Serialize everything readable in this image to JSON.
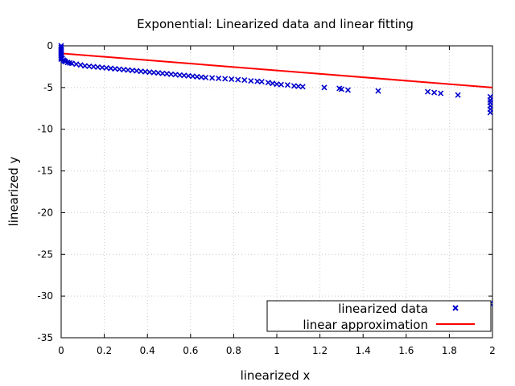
{
  "chart_data": {
    "type": "scatter",
    "title": "Exponential: Linearized data and linear fitting",
    "xlabel": "linearized x",
    "ylabel": "linearized y",
    "xlim": [
      0,
      2
    ],
    "ylim": [
      -35,
      0
    ],
    "xticks": [
      "0",
      "0.2",
      "0.4",
      "0.6",
      "0.8",
      "1",
      "1.2",
      "1.4",
      "1.6",
      "1.8",
      "2"
    ],
    "yticks": [
      "0",
      "-5",
      "-10",
      "-15",
      "-20",
      "-25",
      "-30",
      "-35"
    ],
    "grid": true,
    "legend_position": "bottom-right",
    "series": [
      {
        "name": "linearized data",
        "kind": "points",
        "marker": "x",
        "color": "#0000cc",
        "points": [
          [
            0,
            0
          ],
          [
            0,
            -0.2
          ],
          [
            0,
            -0.4
          ],
          [
            0,
            -0.6
          ],
          [
            0,
            -0.8
          ],
          [
            0,
            -1.0
          ],
          [
            0,
            -1.2
          ],
          [
            0,
            -1.4
          ],
          [
            0,
            -1.6
          ],
          [
            0.005,
            -1.5
          ],
          [
            0.01,
            -1.7
          ],
          [
            0.015,
            -1.8
          ],
          [
            0.02,
            -1.9
          ],
          [
            0.03,
            -2.0
          ],
          [
            0.04,
            -2.05
          ],
          [
            0.05,
            -2.1
          ],
          [
            0.07,
            -2.2
          ],
          [
            0.09,
            -2.3
          ],
          [
            0.11,
            -2.4
          ],
          [
            0.13,
            -2.45
          ],
          [
            0.15,
            -2.5
          ],
          [
            0.17,
            -2.55
          ],
          [
            0.19,
            -2.6
          ],
          [
            0.21,
            -2.65
          ],
          [
            0.23,
            -2.7
          ],
          [
            0.25,
            -2.75
          ],
          [
            0.27,
            -2.8
          ],
          [
            0.29,
            -2.85
          ],
          [
            0.31,
            -2.9
          ],
          [
            0.33,
            -2.95
          ],
          [
            0.35,
            -3.0
          ],
          [
            0.37,
            -3.05
          ],
          [
            0.39,
            -3.1
          ],
          [
            0.41,
            -3.15
          ],
          [
            0.43,
            -3.2
          ],
          [
            0.45,
            -3.25
          ],
          [
            0.47,
            -3.3
          ],
          [
            0.49,
            -3.35
          ],
          [
            0.51,
            -3.4
          ],
          [
            0.53,
            -3.45
          ],
          [
            0.55,
            -3.5
          ],
          [
            0.57,
            -3.55
          ],
          [
            0.59,
            -3.6
          ],
          [
            0.61,
            -3.65
          ],
          [
            0.63,
            -3.7
          ],
          [
            0.65,
            -3.75
          ],
          [
            0.67,
            -3.8
          ],
          [
            0.7,
            -3.85
          ],
          [
            0.73,
            -3.9
          ],
          [
            0.76,
            -3.95
          ],
          [
            0.79,
            -4.0
          ],
          [
            0.82,
            -4.05
          ],
          [
            0.85,
            -4.1
          ],
          [
            0.88,
            -4.2
          ],
          [
            0.91,
            -4.25
          ],
          [
            0.93,
            -4.3
          ],
          [
            0.96,
            -4.4
          ],
          [
            0.98,
            -4.5
          ],
          [
            1.0,
            -4.6
          ],
          [
            1.02,
            -4.65
          ],
          [
            1.05,
            -4.7
          ],
          [
            1.08,
            -4.8
          ],
          [
            1.1,
            -4.85
          ],
          [
            1.12,
            -4.9
          ],
          [
            1.22,
            -5.0
          ],
          [
            1.29,
            -5.1
          ],
          [
            1.3,
            -5.2
          ],
          [
            1.33,
            -5.3
          ],
          [
            1.47,
            -5.4
          ],
          [
            1.7,
            -5.5
          ],
          [
            1.73,
            -5.6
          ],
          [
            1.76,
            -5.7
          ],
          [
            1.84,
            -5.9
          ],
          [
            1.99,
            -6.1
          ],
          [
            1.99,
            -6.5
          ],
          [
            1.99,
            -6.8
          ],
          [
            1.99,
            -7.2
          ],
          [
            1.99,
            -7.6
          ],
          [
            1.99,
            -8.0
          ],
          [
            1.99,
            -30.9
          ]
        ]
      },
      {
        "name": "linear approximation",
        "kind": "line",
        "color": "#ff0000",
        "points": [
          [
            0,
            -0.9
          ],
          [
            2,
            -5.0
          ]
        ]
      }
    ]
  }
}
